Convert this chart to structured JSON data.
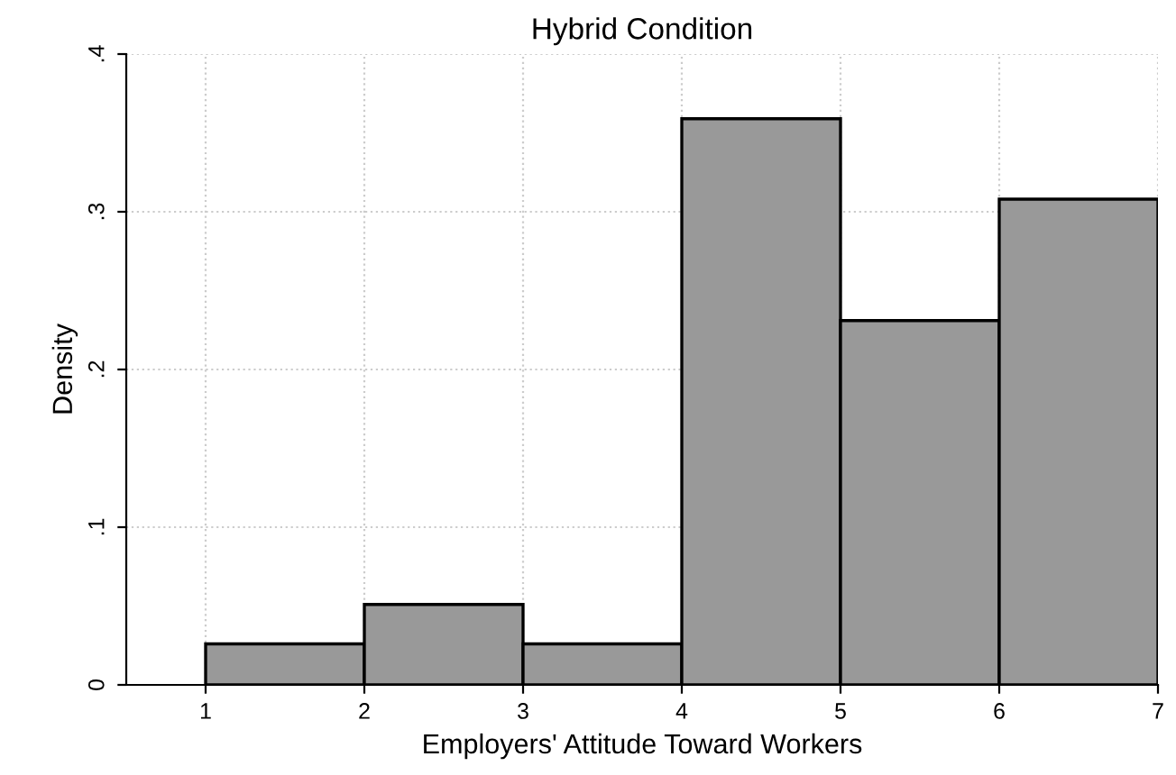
{
  "chart_data": {
    "type": "histogram",
    "title": "Hybrid Condition",
    "xlabel": "Employers' Attitude Toward Workers",
    "ylabel": "Density",
    "bins": [
      1,
      2,
      3,
      4,
      5,
      6,
      7
    ],
    "values": [
      0.026,
      0.051,
      0.026,
      0.359,
      0.231,
      0.308
    ],
    "color": "#999999",
    "xlim": [
      0.5,
      7
    ],
    "xticks": [
      1,
      2,
      3,
      4,
      5,
      6,
      7
    ],
    "ylim": [
      0,
      0.4
    ],
    "yticks": [
      {
        "value": 0,
        "label": "0"
      },
      {
        "value": 0.1,
        "label": ".1"
      },
      {
        "value": 0.2,
        "label": ".2"
      },
      {
        "value": 0.3,
        "label": ".3"
      },
      {
        "value": 0.4,
        "label": ".4"
      }
    ],
    "grid": true
  }
}
